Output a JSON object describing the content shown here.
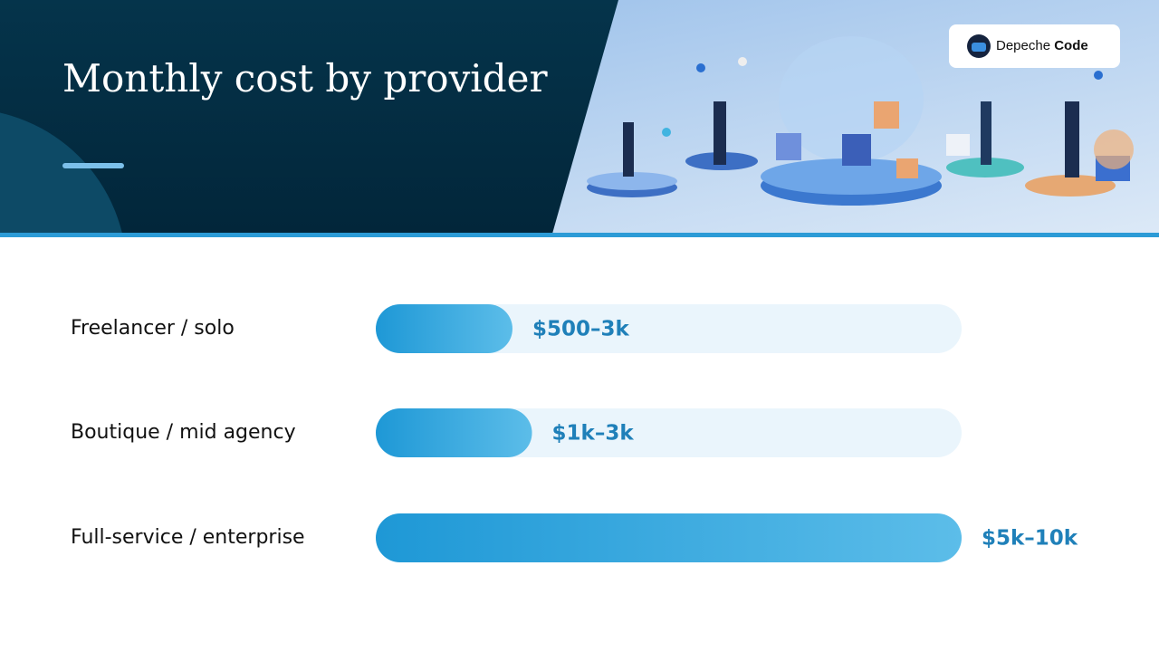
{
  "chart_data": {
    "type": "bar",
    "orientation": "horizontal",
    "title": "Monthly cost by provider",
    "categories": [
      "Freelancer / solo",
      "Boutique / mid agency",
      "Full-service / enterprise"
    ],
    "values": [
      1750,
      2000,
      7500
    ],
    "value_labels": [
      "$500–3k",
      "$1k–3k",
      "$5k–10k"
    ],
    "xlim": [
      0,
      7500
    ],
    "color": "#2ba3de"
  },
  "brand": {
    "name_1": "Depeche",
    "name_2": "Code"
  }
}
